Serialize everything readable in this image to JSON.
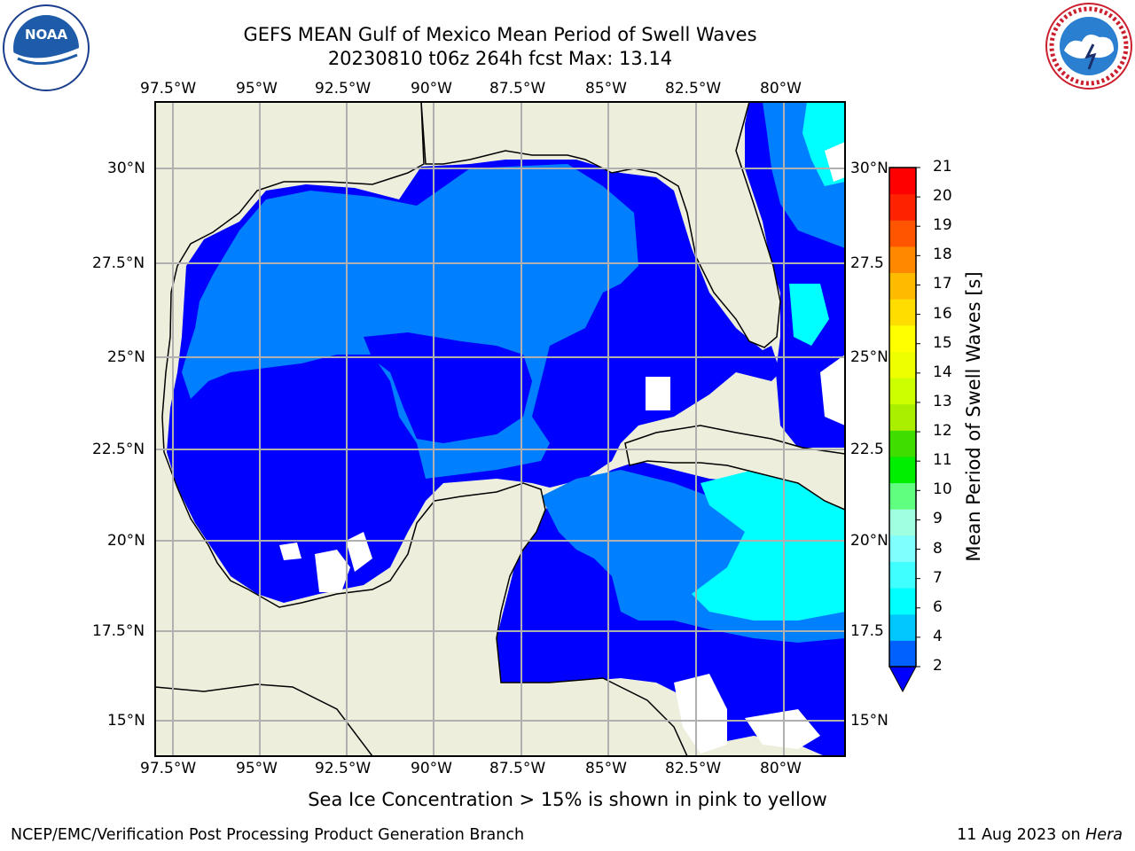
{
  "title": {
    "line1": "GEFS MEAN Gulf of Mexico Mean Period of Swell Waves",
    "line2": "20230810 t06z 264h fcst   Max: 13.14"
  },
  "logos": {
    "left": {
      "name": "noaa-logo",
      "text": "NOAA",
      "ring_text": "NATIONAL OCEANIC AND ATMOSPHERIC ADMINISTRATION · U.S. DEPARTMENT OF COMMERCE"
    },
    "right": {
      "name": "nws-logo",
      "ring_text": "NATIONAL WEATHER SERVICE"
    }
  },
  "map": {
    "lon_ticks": [
      "97.5°W",
      "95°W",
      "92.5°W",
      "90°W",
      "87.5°W",
      "85°W",
      "82.5°W",
      "80°W"
    ],
    "lat_ticks_left": [
      "30°N",
      "27.5°N",
      "25°N",
      "22.5°N",
      "20°N",
      "17.5°N",
      "15°N"
    ],
    "lat_ticks_right": [
      "30°N",
      "27.5",
      "25°N",
      "22.5",
      "20°N",
      "17.5",
      "15°N"
    ],
    "land_color": "#eeeedd",
    "grid": true
  },
  "colorbar": {
    "label": "Mean Period of Swell Waves [s]",
    "ticks": [
      "2",
      "4",
      "6",
      "7",
      "8",
      "9",
      "10",
      "11",
      "12",
      "13",
      "14",
      "15",
      "16",
      "17",
      "18",
      "19",
      "20",
      "21"
    ],
    "colors": [
      "#0061ff",
      "#00c8ff",
      "#00ffff",
      "#40ffff",
      "#80ffff",
      "#a0ffe0",
      "#60ff80",
      "#00ee00",
      "#40dd00",
      "#aaee00",
      "#ccff00",
      "#eeff00",
      "#ffff00",
      "#ffdd00",
      "#ffbb00",
      "#ff8800",
      "#ff5500",
      "#ff2200",
      "#ff0000"
    ],
    "under_color": "#0000ff",
    "extend": "min"
  },
  "caption": "Sea Ice Concentration > 15% is shown in pink to yellow",
  "footer": {
    "left": "NCEP/EMC/Verification Post Processing Product Generation Branch",
    "date": "11 Aug 2023 on ",
    "host": "Hera"
  }
}
